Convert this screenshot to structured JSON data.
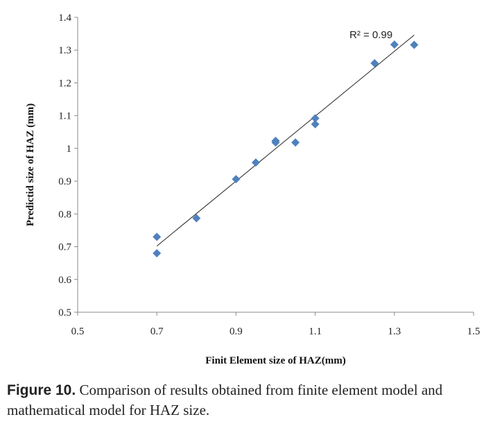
{
  "chart_data": {
    "type": "scatter",
    "xlabel": "Finit Element size of HAZ(mm)",
    "ylabel": "Predictid size of HAZ (mm)",
    "xlim": [
      0.5,
      1.5
    ],
    "ylim": [
      0.5,
      1.4
    ],
    "xticks": [
      "0.5",
      "0.7",
      "0.9",
      "1.1",
      "1.3",
      "1.5"
    ],
    "yticks": [
      "0.5",
      "0.6",
      "0.7",
      "0.8",
      "0.9",
      "1",
      "1.1",
      "1.2",
      "1.3",
      "1.4"
    ],
    "grid": false,
    "marker": "diamond",
    "marker_color": "#4f81bd",
    "points": [
      {
        "x": 0.7,
        "y": 0.73
      },
      {
        "x": 0.7,
        "y": 0.68
      },
      {
        "x": 0.8,
        "y": 0.787
      },
      {
        "x": 0.9,
        "y": 0.906
      },
      {
        "x": 0.95,
        "y": 0.957
      },
      {
        "x": 1.0,
        "y": 1.023
      },
      {
        "x": 1.0,
        "y": 1.018
      },
      {
        "x": 1.05,
        "y": 1.018
      },
      {
        "x": 1.1,
        "y": 1.092
      },
      {
        "x": 1.1,
        "y": 1.074
      },
      {
        "x": 1.25,
        "y": 1.26
      },
      {
        "x": 1.3,
        "y": 1.317
      },
      {
        "x": 1.35,
        "y": 1.316
      }
    ],
    "trendline": {
      "x": [
        0.7,
        1.35
      ],
      "y": [
        0.702,
        1.346
      ]
    },
    "annotation": "R² = 0.99"
  },
  "caption": {
    "label": "Figure 10.",
    "text": " Comparison of results obtained from finite element model and mathematical model for HAZ size."
  }
}
